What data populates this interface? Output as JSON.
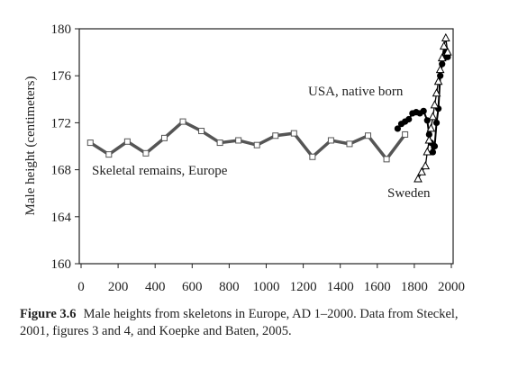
{
  "chart_data": {
    "type": "line",
    "ylabel": "Male height (centimeters)",
    "xlim": [
      0,
      2000
    ],
    "xticks": [
      0,
      200,
      400,
      600,
      800,
      1000,
      1200,
      1400,
      1600,
      1800,
      2000
    ],
    "ylim": [
      160,
      180
    ],
    "yticks": [
      160,
      164,
      168,
      172,
      176,
      180
    ],
    "grid": false,
    "series": [
      {
        "name": "Skeletal remains, Europe",
        "color": "#555555",
        "marker": "square",
        "x": [
          50,
          150,
          250,
          350,
          450,
          550,
          650,
          750,
          850,
          950,
          1050,
          1150,
          1250,
          1350,
          1450,
          1550,
          1650,
          1750
        ],
        "values": [
          170.3,
          169.3,
          170.4,
          169.4,
          170.7,
          172.1,
          171.3,
          170.3,
          170.5,
          170.1,
          170.9,
          171.1,
          169.1,
          170.5,
          170.2,
          170.9,
          168.9,
          171.0
        ]
      },
      {
        "name": "USA, native born",
        "color": "#000000",
        "marker": "circle",
        "x": [
          1710,
          1730,
          1750,
          1770,
          1790,
          1810,
          1830,
          1850,
          1870,
          1880,
          1890,
          1900,
          1910,
          1920,
          1930,
          1940,
          1950,
          1960,
          1970,
          1980
        ],
        "values": [
          171.5,
          171.9,
          172.1,
          172.3,
          172.8,
          172.9,
          172.8,
          173.0,
          172.2,
          171.0,
          170.3,
          169.5,
          170.0,
          172.0,
          173.2,
          176.0,
          177.0,
          177.5,
          178.0,
          177.6
        ]
      },
      {
        "name": "Sweden",
        "color": "#000000",
        "marker": "triangle",
        "x": [
          1820,
          1840,
          1860,
          1870,
          1880,
          1890,
          1900,
          1910,
          1920,
          1930,
          1940,
          1950,
          1960,
          1970,
          1980
        ],
        "values": [
          167.2,
          167.8,
          168.3,
          169.5,
          170.5,
          171.5,
          172.5,
          173.5,
          174.5,
          175.5,
          176.5,
          177.5,
          178.5,
          179.2,
          178.0
        ]
      }
    ],
    "caption_label": "Figure 3.6",
    "caption": "Male heights from skeletons in Europe, AD 1–2000. Data from Steckel, 2001, figures 3 and 4, and Koepke and Baten, 2005."
  }
}
